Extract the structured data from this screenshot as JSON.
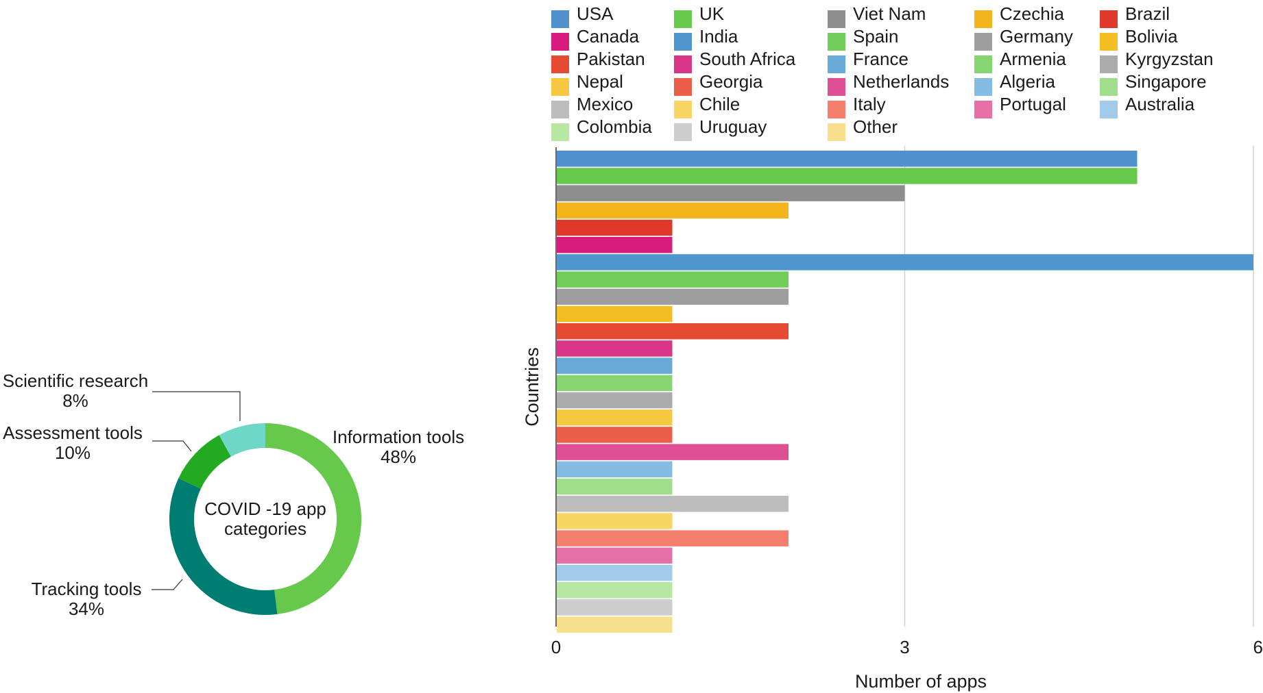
{
  "chart_data": [
    {
      "type": "pie",
      "style": "donut",
      "center_label": [
        "COVID -19 app",
        "categories"
      ],
      "slices": [
        {
          "label": "Information tools",
          "pct_label": "48%",
          "value": 48,
          "color": "#66c94c"
        },
        {
          "label": "Tracking tools",
          "pct_label": "34%",
          "value": 34,
          "color": "#007d72"
        },
        {
          "label": "Assessment tools",
          "pct_label": "10%",
          "value": 10,
          "color": "#22ab22"
        },
        {
          "label": "Scientific research",
          "pct_label": "8%",
          "value": 8,
          "color": "#6fd7c7"
        }
      ]
    },
    {
      "type": "bar",
      "orientation": "horizontal",
      "xlabel": "Number of apps",
      "ylabel": "Countries",
      "xlim": [
        0,
        6
      ],
      "xticks": [
        "0",
        "3",
        "6"
      ],
      "grid": true,
      "legend_position": "top",
      "bars": [
        {
          "name": "USA",
          "value": 5,
          "color": "#4f91cd"
        },
        {
          "name": "UK",
          "value": 5,
          "color": "#66c94c"
        },
        {
          "name": "Viet Nam",
          "value": 3,
          "color": "#8e8e8e"
        },
        {
          "name": "Czechia",
          "value": 2,
          "color": "#f2b51c"
        },
        {
          "name": "Brazil",
          "value": 1,
          "color": "#e0382b"
        },
        {
          "name": "Canada",
          "value": 1,
          "color": "#d81b7c"
        },
        {
          "name": "India",
          "value": 6,
          "color": "#4f96cf"
        },
        {
          "name": "Spain",
          "value": 2,
          "color": "#72cc5a"
        },
        {
          "name": "Germany",
          "value": 2,
          "color": "#9e9e9e"
        },
        {
          "name": "Bolivia",
          "value": 1,
          "color": "#f4bd22"
        },
        {
          "name": "Pakistan",
          "value": 2,
          "color": "#e64a32"
        },
        {
          "name": "South Africa",
          "value": 1,
          "color": "#d9368a"
        },
        {
          "name": "France",
          "value": 1,
          "color": "#6aaad8"
        },
        {
          "name": "Armenia",
          "value": 1,
          "color": "#86d472"
        },
        {
          "name": "Kyrgyzstan",
          "value": 1,
          "color": "#ababab"
        },
        {
          "name": "Nepal",
          "value": 1,
          "color": "#f6c842"
        },
        {
          "name": "Georgia",
          "value": 1,
          "color": "#eb5e4a"
        },
        {
          "name": "Netherlands",
          "value": 2,
          "color": "#de4f96"
        },
        {
          "name": "Algeria",
          "value": 1,
          "color": "#84bce3"
        },
        {
          "name": "Singapore",
          "value": 1,
          "color": "#a0de8c"
        },
        {
          "name": "Mexico",
          "value": 2,
          "color": "#bdbdbd"
        },
        {
          "name": "Chile",
          "value": 1,
          "color": "#f9d564"
        },
        {
          "name": "Italy",
          "value": 2,
          "color": "#f47f6c"
        },
        {
          "name": "Portugal",
          "value": 1,
          "color": "#e670a7"
        },
        {
          "name": "Australia",
          "value": 1,
          "color": "#a2cbeb"
        },
        {
          "name": "Colombia",
          "value": 1,
          "color": "#b6e8a4"
        },
        {
          "name": "Uruguay",
          "value": 1,
          "color": "#cdcdcd"
        },
        {
          "name": "Other",
          "value": 1,
          "color": "#f8df8e"
        }
      ],
      "legend_columns": [
        [
          "USA",
          "Canada",
          "Pakistan",
          "Nepal",
          "Mexico",
          "Colombia"
        ],
        [
          "UK",
          "India",
          "South Africa",
          "Georgia",
          "Chile",
          "Uruguay"
        ],
        [
          "Viet Nam",
          "Spain",
          "France",
          "Netherlands",
          "Italy",
          "Other"
        ],
        [
          "Czechia",
          "Germany",
          "Armenia",
          "Algeria",
          "Portugal"
        ],
        [
          "Brazil",
          "Bolivia",
          "Kyrgyzstan",
          "Singapore",
          "Australia"
        ]
      ]
    }
  ]
}
